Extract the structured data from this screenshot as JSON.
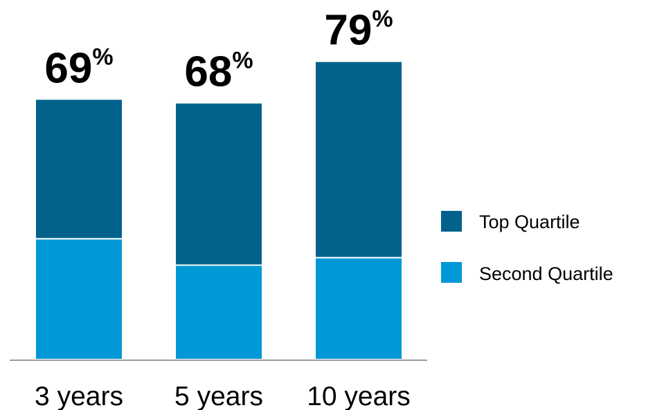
{
  "chart_data": {
    "type": "bar",
    "stacked": true,
    "categories": [
      "3 years",
      "5 years",
      "10 years"
    ],
    "series": [
      {
        "name": "Second Quartile",
        "values": [
          32,
          25,
          27
        ]
      },
      {
        "name": "Top Quartile",
        "values": [
          37,
          43,
          52
        ]
      }
    ],
    "totals": [
      69,
      68,
      79
    ],
    "total_suffix": "%",
    "ylim": [
      0,
      80
    ],
    "grid": false,
    "legend_position": "right",
    "colors": {
      "Top Quartile": "#02628C",
      "Second Quartile": "#0098D6",
      "axis": "#9A9A9A"
    }
  },
  "legend": {
    "items": [
      {
        "label": "Top Quartile",
        "color": "#02628C"
      },
      {
        "label": "Second Quartile",
        "color": "#0098D6"
      }
    ]
  }
}
